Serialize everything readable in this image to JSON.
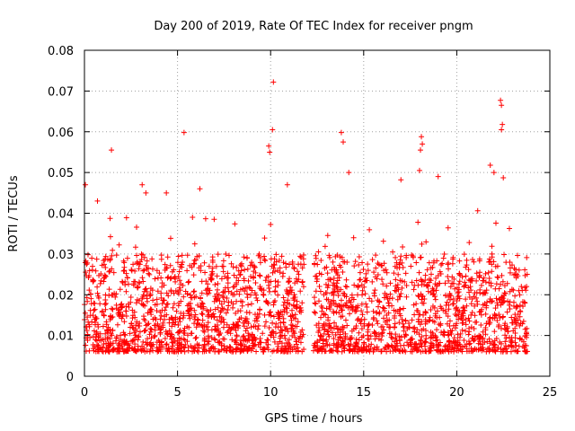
{
  "chart_data": {
    "type": "scatter",
    "title": "Day 200 of 2019, Rate Of TEC Index for receiver pngm",
    "xlabel": "GPS time / hours",
    "ylabel": "ROTI / TECUs",
    "xlim": [
      0,
      25
    ],
    "ylim": [
      0,
      0.08
    ],
    "x_ticks": [
      "0",
      "5",
      "10",
      "15",
      "20",
      "25"
    ],
    "y_ticks": [
      "0",
      "0.01",
      "0.02",
      "0.03",
      "0.04",
      "0.05",
      "0.06",
      "0.07",
      "0.08"
    ],
    "grid": true,
    "marker": "+",
    "color": "#ff0000",
    "data_range_hours": [
      0,
      23.8
    ],
    "data_gap_hours": [
      11.8,
      12.3
    ],
    "series": [
      {
        "name": "ROTI",
        "note": "dense scatter of ~one point per station/satellite epoch; bulk of values 0.005-0.03 TECU/s",
        "outliers": [
          {
            "x": 0.05,
            "y": 0.047
          },
          {
            "x": 0.7,
            "y": 0.043
          },
          {
            "x": 1.45,
            "y": 0.0555
          },
          {
            "x": 3.1,
            "y": 0.047
          },
          {
            "x": 3.3,
            "y": 0.045
          },
          {
            "x": 4.4,
            "y": 0.045
          },
          {
            "x": 5.35,
            "y": 0.0598
          },
          {
            "x": 6.2,
            "y": 0.046
          },
          {
            "x": 9.9,
            "y": 0.0565
          },
          {
            "x": 9.95,
            "y": 0.055
          },
          {
            "x": 10.1,
            "y": 0.0605
          },
          {
            "x": 10.15,
            "y": 0.0722
          },
          {
            "x": 10.9,
            "y": 0.047
          },
          {
            "x": 13.8,
            "y": 0.0598
          },
          {
            "x": 13.9,
            "y": 0.0575
          },
          {
            "x": 14.2,
            "y": 0.05
          },
          {
            "x": 17.0,
            "y": 0.0482
          },
          {
            "x": 18.05,
            "y": 0.0555
          },
          {
            "x": 18.1,
            "y": 0.0588
          },
          {
            "x": 18.15,
            "y": 0.057
          },
          {
            "x": 18.0,
            "y": 0.0505
          },
          {
            "x": 19.0,
            "y": 0.049
          },
          {
            "x": 21.8,
            "y": 0.0518
          },
          {
            "x": 22.0,
            "y": 0.05
          },
          {
            "x": 22.35,
            "y": 0.0677
          },
          {
            "x": 22.4,
            "y": 0.0665
          },
          {
            "x": 22.45,
            "y": 0.0618
          },
          {
            "x": 22.4,
            "y": 0.0605
          },
          {
            "x": 22.5,
            "y": 0.0487
          }
        ]
      }
    ]
  }
}
